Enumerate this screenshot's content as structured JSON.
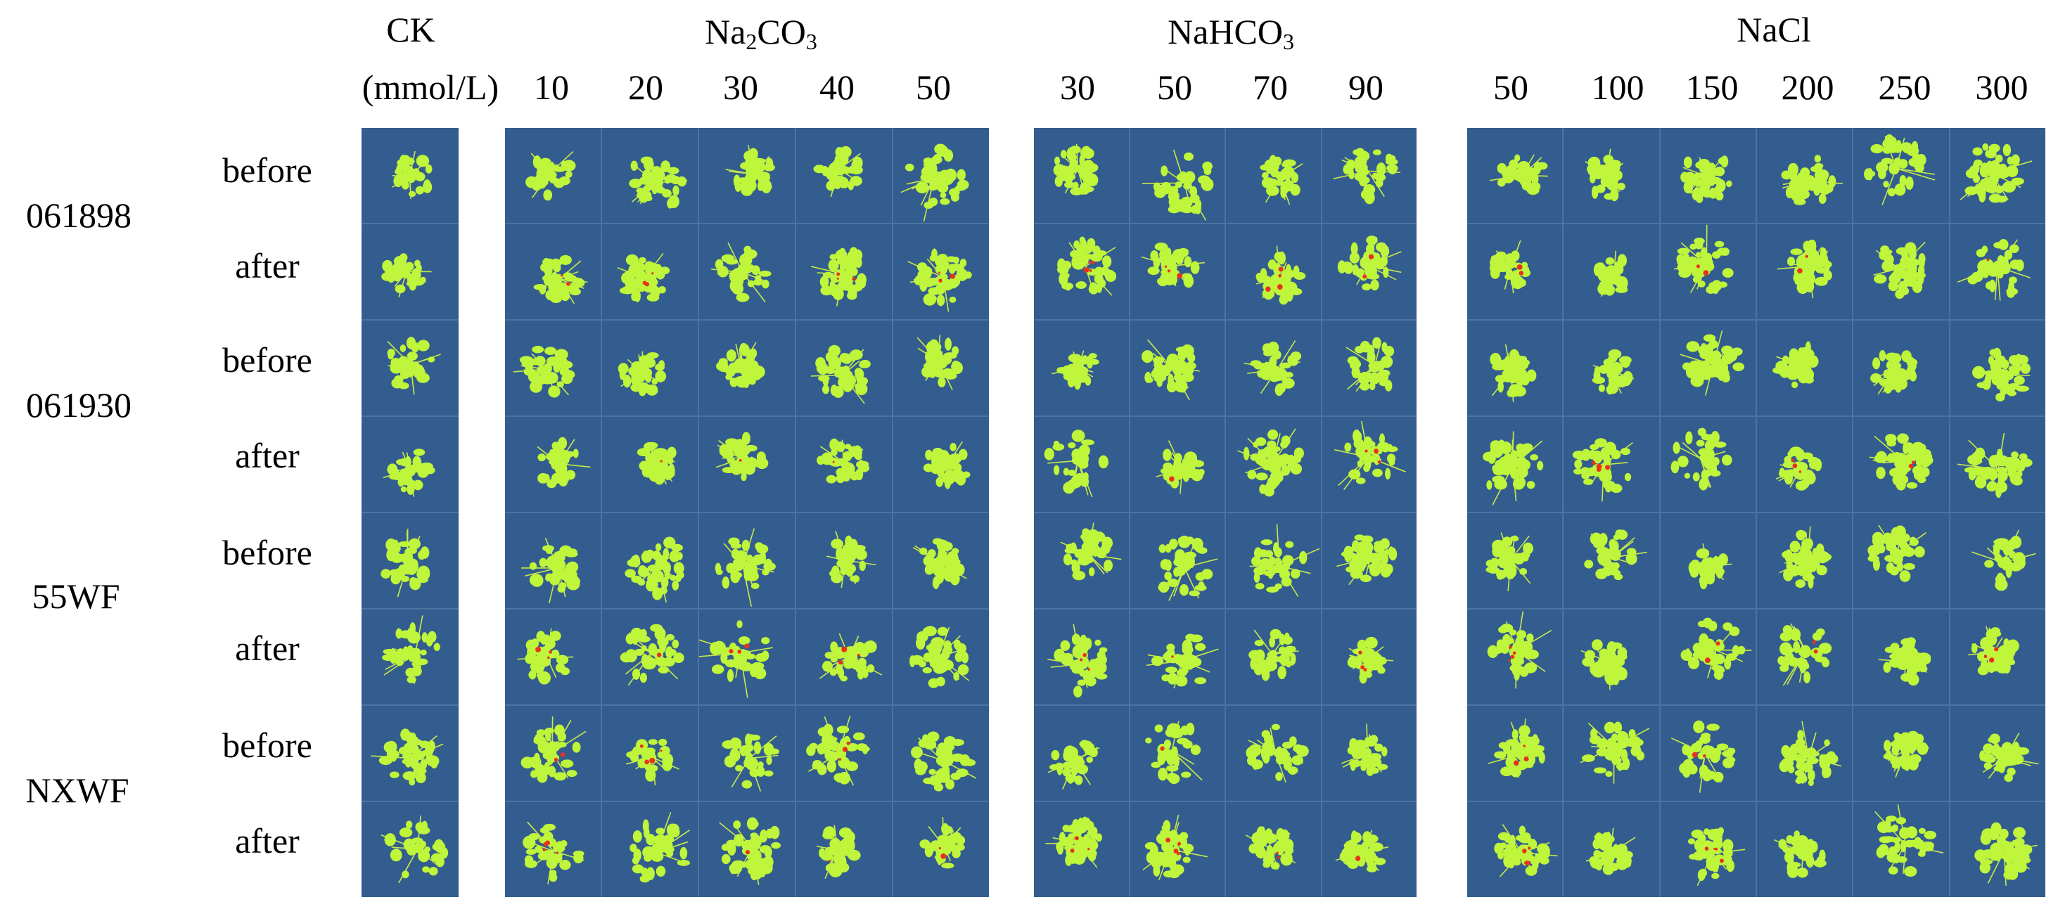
{
  "header": {
    "ck": "CK",
    "unit": "(mmol/L)",
    "groups": [
      {
        "name": "Na",
        "sub": "2",
        "name2": "CO",
        "sub2": "3",
        "concentrations": [
          "10",
          "20",
          "30",
          "40",
          "50"
        ]
      },
      {
        "name": "NaHCO",
        "sub": "3",
        "concentrations": [
          "30",
          "50",
          "70",
          "90"
        ]
      },
      {
        "name": "NaCl",
        "concentrations": [
          "50",
          "100",
          "150",
          "200",
          "250",
          "300"
        ]
      }
    ]
  },
  "genotypes": [
    "061898",
    "061930",
    "55WF",
    "NXWF"
  ],
  "stages": [
    "before",
    "after"
  ],
  "colors": {
    "panel_bg": "#335d8e",
    "leaf": "#bff53a",
    "stress_spot": "#e8321e"
  }
}
